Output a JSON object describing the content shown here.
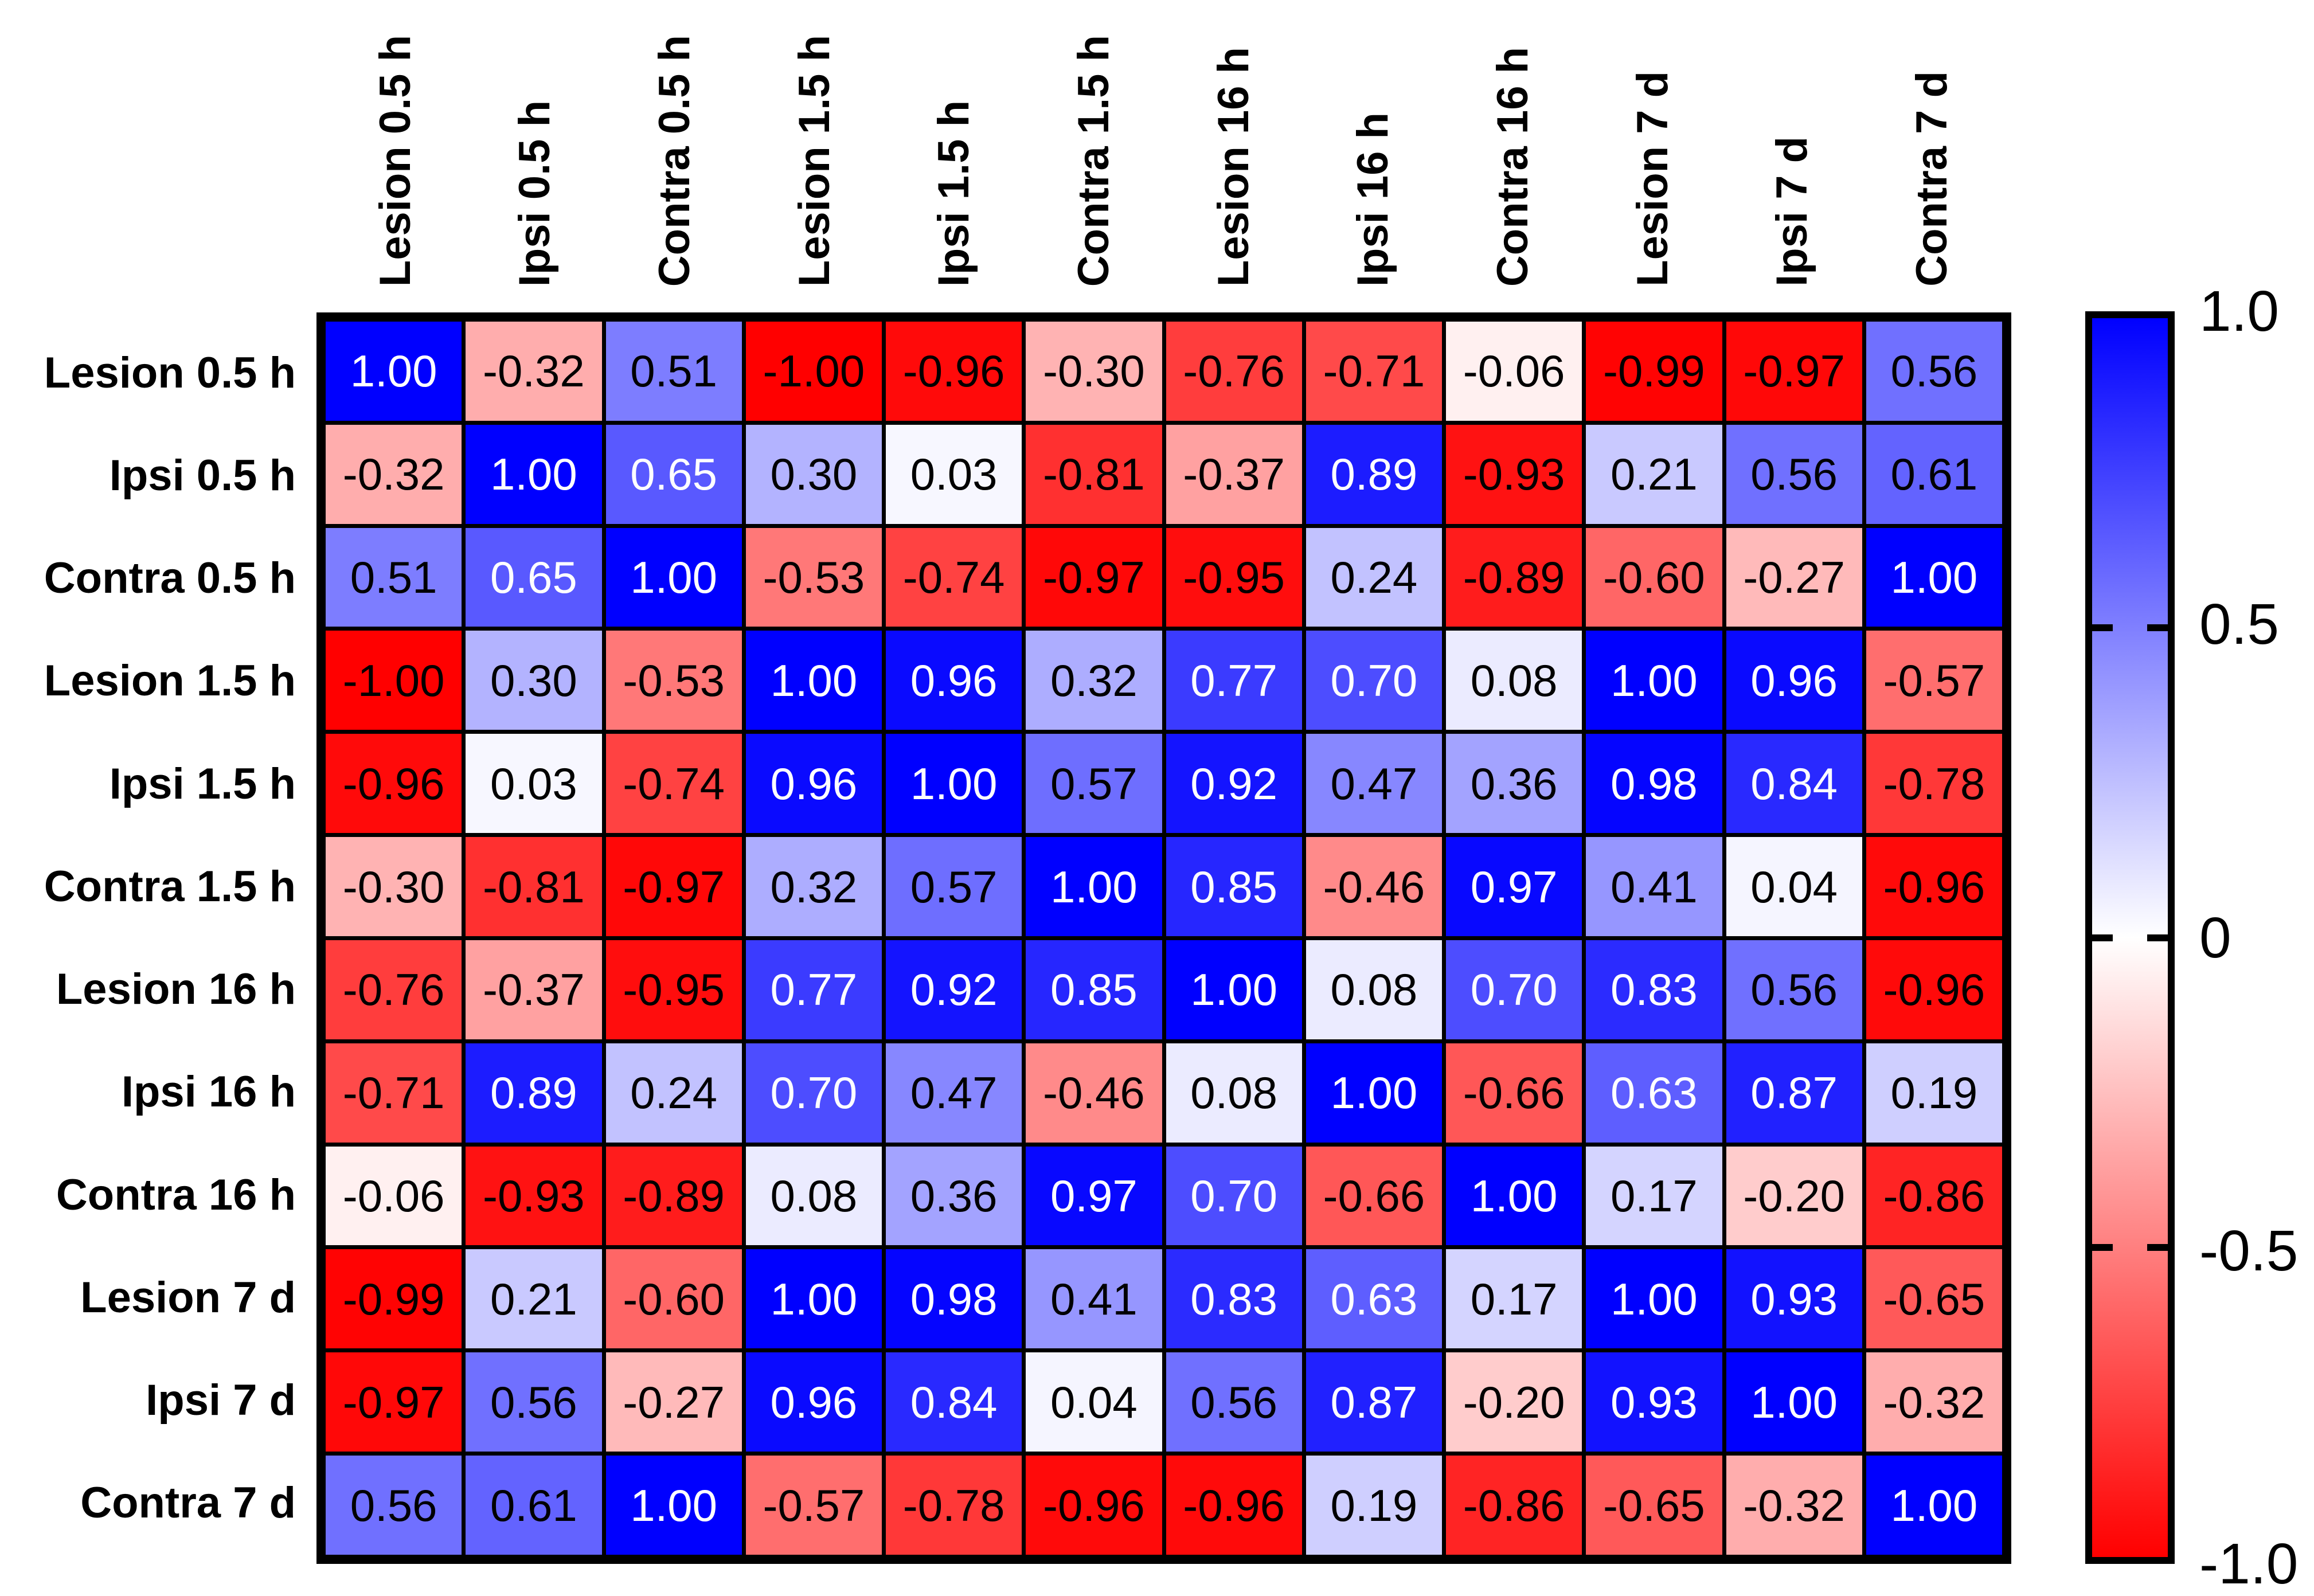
{
  "chart_data": {
    "type": "heatmap",
    "title": "",
    "categories": [
      "Lesion 0.5 h",
      "Ipsi 0.5 h",
      "Contra 0.5 h",
      "Lesion 1.5 h",
      "Ipsi 1.5 h",
      "Contra 1.5 h",
      "Lesion 16 h",
      "Ipsi 16 h",
      "Contra 16 h",
      "Lesion 7 d",
      "Ipsi 7 d",
      "Contra 7 d"
    ],
    "matrix": [
      [
        1.0,
        -0.32,
        0.51,
        -1.0,
        -0.96,
        -0.3,
        -0.76,
        -0.71,
        -0.06,
        -0.99,
        -0.97,
        0.56
      ],
      [
        -0.32,
        1.0,
        0.65,
        0.3,
        0.03,
        -0.81,
        -0.37,
        0.89,
        -0.93,
        0.21,
        0.56,
        0.61
      ],
      [
        0.51,
        0.65,
        1.0,
        -0.53,
        -0.74,
        -0.97,
        -0.95,
        0.24,
        -0.89,
        -0.6,
        -0.27,
        1.0
      ],
      [
        -1.0,
        0.3,
        -0.53,
        1.0,
        0.96,
        0.32,
        0.77,
        0.7,
        0.08,
        1.0,
        0.96,
        -0.57
      ],
      [
        -0.96,
        0.03,
        -0.74,
        0.96,
        1.0,
        0.57,
        0.92,
        0.47,
        0.36,
        0.98,
        0.84,
        -0.78
      ],
      [
        -0.3,
        -0.81,
        -0.97,
        0.32,
        0.57,
        1.0,
        0.85,
        -0.46,
        0.97,
        0.41,
        0.04,
        -0.96
      ],
      [
        -0.76,
        -0.37,
        -0.95,
        0.77,
        0.92,
        0.85,
        1.0,
        0.08,
        0.7,
        0.83,
        0.56,
        -0.96
      ],
      [
        -0.71,
        0.89,
        0.24,
        0.7,
        0.47,
        -0.46,
        0.08,
        1.0,
        -0.66,
        0.63,
        0.87,
        0.19
      ],
      [
        -0.06,
        -0.93,
        -0.89,
        0.08,
        0.36,
        0.97,
        0.7,
        -0.66,
        1.0,
        0.17,
        -0.2,
        -0.86
      ],
      [
        -0.99,
        0.21,
        -0.6,
        1.0,
        0.98,
        0.41,
        0.83,
        0.63,
        0.17,
        1.0,
        0.93,
        -0.65
      ],
      [
        -0.97,
        0.56,
        -0.27,
        0.96,
        0.84,
        0.04,
        0.56,
        0.87,
        -0.2,
        0.93,
        1.0,
        -0.32
      ],
      [
        0.56,
        0.61,
        1.0,
        -0.57,
        -0.78,
        -0.96,
        -0.96,
        0.19,
        -0.86,
        -0.65,
        -0.32,
        1.0
      ]
    ],
    "value_decimals": 2,
    "range": [
      -1,
      1
    ],
    "colormap": {
      "positive": "#0000FF",
      "zero": "#FFFFFF",
      "negative": "#FF0000",
      "grid_line": "#000000"
    },
    "colorbar": {
      "position": "right",
      "tick_labels": [
        "1.0",
        "0.5",
        "0",
        "-0.5",
        "-1.0"
      ],
      "tick_values": [
        1,
        0.5,
        0,
        -0.5,
        -1
      ]
    },
    "legend": "none",
    "axes": "matrix rows and columns share identical category labels; column labels rotated 90 degrees"
  }
}
